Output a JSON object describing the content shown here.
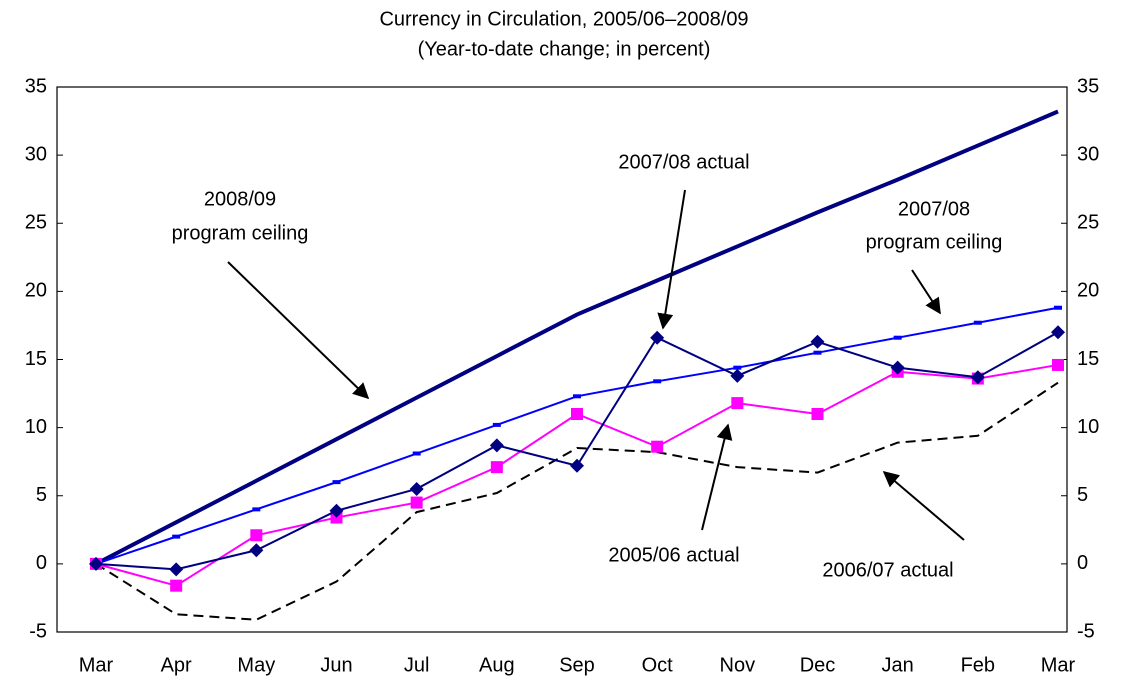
{
  "chart_data": {
    "type": "line",
    "title": [
      "Currency in Circulation, 2005/06–2008/09",
      "(Year-to-date change; in percent)"
    ],
    "categories": [
      "Mar",
      "Apr",
      "May",
      "Jun",
      "Jul",
      "Aug",
      "Sep",
      "Oct",
      "Nov",
      "Dec",
      "Jan",
      "Feb",
      "Mar"
    ],
    "ylim": [
      -5,
      35
    ],
    "yticks": [
      -5,
      0,
      5,
      10,
      15,
      20,
      25,
      30,
      35
    ],
    "y2lim": [
      -5,
      35
    ],
    "y2ticks": [
      -5,
      0,
      5,
      10,
      15,
      20,
      25,
      30,
      35
    ],
    "series": [
      {
        "label_lines": [
          "2008/09",
          "program ceiling"
        ],
        "color": "#000080",
        "width": 4,
        "marker": "none",
        "values": [
          0,
          3.05,
          6.1,
          9.15,
          12.2,
          15.25,
          18.3,
          20.8,
          23.3,
          25.8,
          28.2,
          30.7,
          33.2
        ]
      },
      {
        "label_lines": [
          "2007/08",
          "program ceiling"
        ],
        "color": "#0000ff",
        "width": 2,
        "marker": "dash",
        "values": [
          0,
          2.0,
          4.0,
          6.0,
          8.1,
          10.2,
          12.3,
          13.4,
          14.4,
          15.5,
          16.6,
          17.7,
          18.8
        ]
      },
      {
        "label_lines": [
          "2006/07 actual"
        ],
        "color": "#000000",
        "width": 2,
        "marker": "none",
        "dashed": true,
        "values": [
          0,
          -3.7,
          -4.1,
          -1.3,
          3.8,
          5.2,
          8.5,
          8.2,
          7.1,
          6.7,
          8.9,
          9.4,
          13.3
        ]
      },
      {
        "label_lines": [
          "2005/06 actual"
        ],
        "color": "#ff00ff",
        "width": 2,
        "marker": "square",
        "values": [
          0,
          -1.6,
          2.1,
          3.4,
          4.5,
          7.1,
          11.0,
          8.6,
          11.8,
          11.0,
          14.1,
          13.6,
          14.6
        ]
      },
      {
        "label_lines": [
          "2007/08 actual"
        ],
        "color": "#000080",
        "width": 2,
        "marker": "diamond",
        "values": [
          0,
          -0.4,
          1.0,
          3.9,
          5.5,
          8.7,
          7.2,
          16.6,
          13.8,
          16.3,
          14.4,
          13.7,
          17.0
        ]
      }
    ]
  }
}
